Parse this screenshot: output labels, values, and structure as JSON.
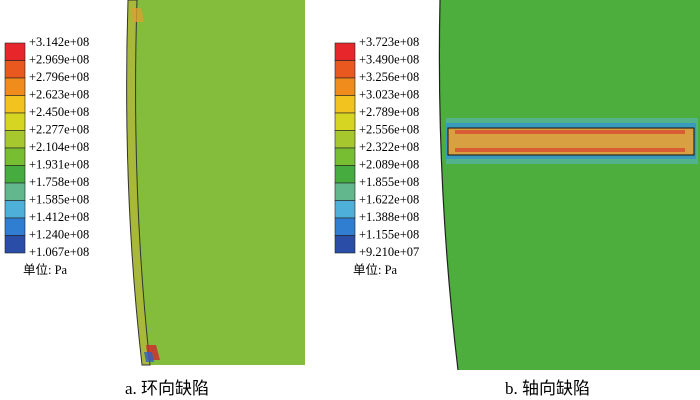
{
  "panels": [
    {
      "legend_labels": [
        "+3.142e+08",
        "+2.969e+08",
        "+2.796e+08",
        "+2.623e+08",
        "+2.450e+08",
        "+2.277e+08",
        "+2.104e+08",
        "+1.931e+08",
        "+1.758e+08",
        "+1.585e+08",
        "+1.412e+08",
        "+1.240e+08",
        "+1.067e+08"
      ],
      "unit": "单位: Pa",
      "caption": "a. 环向缺陷"
    },
    {
      "legend_labels": [
        "+3.723e+08",
        "+3.490e+08",
        "+3.256e+08",
        "+3.023e+08",
        "+2.789e+08",
        "+2.556e+08",
        "+2.322e+08",
        "+2.089e+08",
        "+1.855e+08",
        "+1.622e+08",
        "+1.388e+08",
        "+1.155e+08",
        "+9.210e+07"
      ],
      "unit": "单位: Pa",
      "caption": "b. 轴向缺陷"
    }
  ]
}
